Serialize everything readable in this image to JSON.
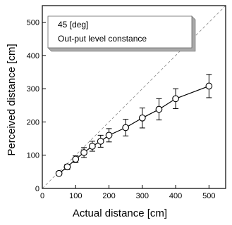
{
  "chart_data": {
    "type": "line",
    "title": "",
    "xlabel": "Actual distance [cm]",
    "ylabel": "Perceived distance [cm]",
    "xlim": [
      0,
      550
    ],
    "ylim": [
      0,
      550
    ],
    "xticks": [
      0,
      100,
      200,
      300,
      400,
      500
    ],
    "yticks": [
      0,
      100,
      200,
      300,
      400,
      500
    ],
    "grid": false,
    "legend_box": {
      "lines": [
        "45 [deg]",
        "Out-put level constance"
      ],
      "placement": "top-left"
    },
    "reference_line": {
      "style": "dashed",
      "from": [
        0,
        0
      ],
      "to": [
        550,
        550
      ]
    },
    "series": [
      {
        "x": [
          50,
          75,
          100,
          125,
          150,
          175,
          200,
          250,
          300,
          350,
          400,
          500
        ],
        "y": [
          45,
          65,
          88,
          108,
          127,
          142,
          160,
          183,
          212,
          238,
          270,
          308
        ],
        "err": [
          5,
          8,
          10,
          15,
          15,
          18,
          20,
          25,
          30,
          32,
          30,
          35
        ],
        "marker": "open-circle"
      }
    ],
    "colors": {
      "line": "#000000",
      "marker_fill": "#ffffff",
      "reference": "#888888",
      "legend_fill": "#ffffff",
      "legend_shadow": "#aaaaaa"
    }
  }
}
